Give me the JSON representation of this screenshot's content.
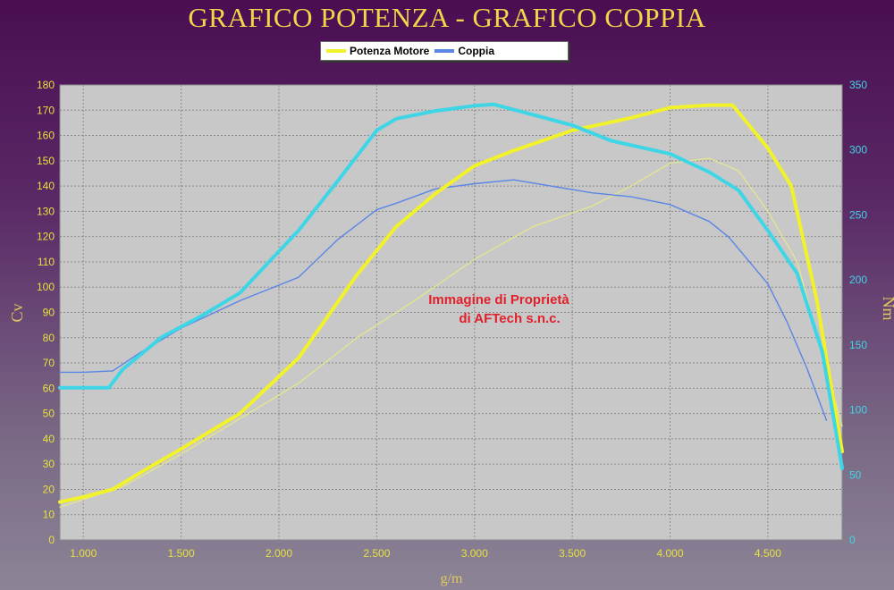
{
  "chart_data": {
    "type": "line",
    "title": "GRAFICO POTENZA - GRAFICO COPPIA",
    "xlabel": "g/m",
    "ylabel_left": "Cv",
    "ylabel_right": "Nm",
    "xlim": [
      880,
      4880
    ],
    "ylim_left": [
      0,
      180
    ],
    "ylim_right": [
      0,
      350
    ],
    "x_ticks": [
      1000,
      1500,
      2000,
      2500,
      3000,
      3500,
      4000,
      4500
    ],
    "x_tick_labels": [
      "1.000",
      "1.500",
      "2.000",
      "2.500",
      "3.000",
      "3.500",
      "4.000",
      "4.500"
    ],
    "y_left_ticks": [
      0,
      10,
      20,
      30,
      40,
      50,
      60,
      70,
      80,
      90,
      100,
      110,
      120,
      130,
      140,
      150,
      160,
      170,
      180
    ],
    "y_right_ticks": [
      0,
      50,
      100,
      150,
      200,
      250,
      300,
      350
    ],
    "grid": true,
    "legend": "top-center",
    "watermark": [
      "Immagine di Proprietà",
      "di AFTech s.n.c."
    ],
    "series": [
      {
        "name": "Potenza Motore",
        "axis": "left",
        "color": "#f2f22a",
        "width": 4,
        "x": [
          880,
          1000,
          1150,
          1300,
          1500,
          1800,
          2100,
          2400,
          2600,
          2800,
          3000,
          3200,
          3500,
          3800,
          4000,
          4200,
          4320,
          4500,
          4620,
          4750,
          4880
        ],
        "y": [
          15,
          17,
          20,
          27,
          36,
          50,
          72,
          105,
          124,
          137,
          148,
          154,
          162,
          167,
          171,
          172,
          172,
          155,
          140,
          95,
          35
        ]
      },
      {
        "color": "#e8e88a",
        "axis": "left",
        "width": 1.2,
        "x": [
          880,
          1000,
          1200,
          1500,
          1800,
          2100,
          2400,
          2700,
          3000,
          3300,
          3600,
          3800,
          4000,
          4200,
          4350,
          4500,
          4650,
          4880
        ],
        "y": [
          13,
          16,
          21,
          34,
          48,
          62,
          80,
          95,
          111,
          124,
          132,
          140,
          149,
          151,
          146,
          130,
          110,
          45
        ]
      },
      {
        "name": "Coppia",
        "axis": "right",
        "color": "#5a86e6",
        "width": 1.4,
        "x": [
          880,
          1000,
          1150,
          1300,
          1500,
          1800,
          2000,
          2100,
          2300,
          2500,
          2600,
          2800,
          3000,
          3200,
          3400,
          3600,
          3800,
          4000,
          4200,
          4300,
          4400,
          4500,
          4600,
          4700,
          4800
        ],
        "y": [
          129,
          129,
          130,
          145,
          163,
          184,
          196,
          202,
          231,
          254,
          259,
          270,
          274,
          277,
          272,
          267,
          264,
          258,
          245,
          233,
          215,
          197,
          167,
          132,
          92
        ]
      },
      {
        "color": "#3ed6e6",
        "axis": "right",
        "width": 4,
        "x": [
          880,
          1000,
          1130,
          1200,
          1400,
          1600,
          1800,
          2000,
          2100,
          2300,
          2500,
          2600,
          2800,
          3000,
          3100,
          3300,
          3500,
          3700,
          4000,
          4200,
          4350,
          4500,
          4650,
          4780,
          4880
        ],
        "y": [
          117,
          117,
          117,
          131,
          156,
          172,
          190,
          222,
          238,
          276,
          315,
          324,
          330,
          334,
          335,
          327,
          319,
          307,
          297,
          283,
          269,
          238,
          205,
          144,
          55
        ]
      }
    ]
  }
}
